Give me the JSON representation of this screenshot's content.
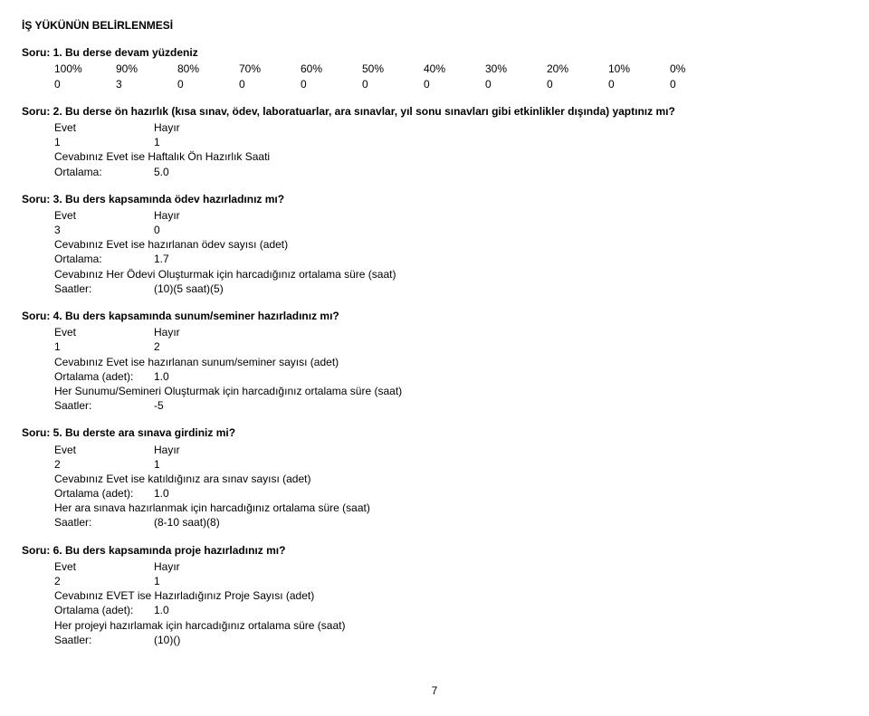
{
  "header": "İŞ YÜKÜNÜN BELİRLENMESİ",
  "q1": {
    "title": "Soru: 1. Bu derse devam yüzdeniz",
    "cols": [
      "100%",
      "90%",
      "80%",
      "70%",
      "60%",
      "50%",
      "40%",
      "30%",
      "20%",
      "10%",
      "0%"
    ],
    "vals": [
      "0",
      "3",
      "0",
      "0",
      "0",
      "0",
      "0",
      "0",
      "0",
      "0",
      "0"
    ]
  },
  "q2": {
    "title": "Soru: 2. Bu derse ön hazırlık (kısa sınav, ödev, laboratuarlar, ara sınavlar, yıl sonu sınavları gibi etkinlikler dışında) yaptınız mı?",
    "eh": {
      "e": "Evet",
      "h": "Hayır",
      "ev": "1",
      "hv": "1"
    },
    "l1": "Cevabınız Evet ise Haftalık Ön Hazırlık Saati",
    "ort_k": "Ortalama:",
    "ort_v": "5.0"
  },
  "q3": {
    "title": "Soru: 3. Bu ders kapsamında ödev hazırladınız mı?",
    "eh": {
      "e": "Evet",
      "h": "Hayır",
      "ev": "3",
      "hv": "0"
    },
    "l1": "Cevabınız Evet ise hazırlanan ödev sayısı (adet)",
    "ort_k": "Ortalama:",
    "ort_v": "1.7",
    "l2": "Cevabınız Her Ödevi Oluşturmak için harcadığınız ortalama süre (saat)",
    "saat_k": "Saatler:",
    "saat_v": "(10)(5 saat)(5)"
  },
  "q4": {
    "title": "Soru: 4. Bu ders kapsamında sunum/seminer hazırladınız mı?",
    "eh": {
      "e": "Evet",
      "h": "Hayır",
      "ev": "1",
      "hv": "2"
    },
    "l1": "Cevabınız Evet ise hazırlanan sunum/seminer sayısı (adet)",
    "ort_k": "Ortalama (adet):",
    "ort_v": "1.0",
    "l2": "Her Sunumu/Semineri Oluşturmak için harcadığınız ortalama süre (saat)",
    "saat_k": "Saatler:",
    "saat_v": "-5"
  },
  "q5": {
    "title": "Soru: 5. Bu derste ara sınava girdiniz mi?",
    "eh": {
      "e": "Evet",
      "h": "Hayır",
      "ev": "2",
      "hv": "1"
    },
    "l1": "Cevabınız Evet ise katıldığınız ara sınav sayısı (adet)",
    "ort_k": "Ortalama (adet):",
    "ort_v": "1.0",
    "l2": "Her ara sınava hazırlanmak için harcadığınız ortalama süre (saat)",
    "saat_k": "Saatler:",
    "saat_v": "(8-10 saat)(8)"
  },
  "q6": {
    "title": "Soru: 6. Bu ders kapsamında proje hazırladınız mı?",
    "eh": {
      "e": "Evet",
      "h": "Hayır",
      "ev": "2",
      "hv": "1"
    },
    "l1": "Cevabınız EVET ise Hazırladığınız Proje Sayısı (adet)",
    "ort_k": "Ortalama (adet):",
    "ort_v": "1.0",
    "l2": "Her projeyi hazırlamak için harcadığınız ortalama süre (saat)",
    "saat_k": "Saatler:",
    "saat_v": "(10)()"
  },
  "page": "7"
}
